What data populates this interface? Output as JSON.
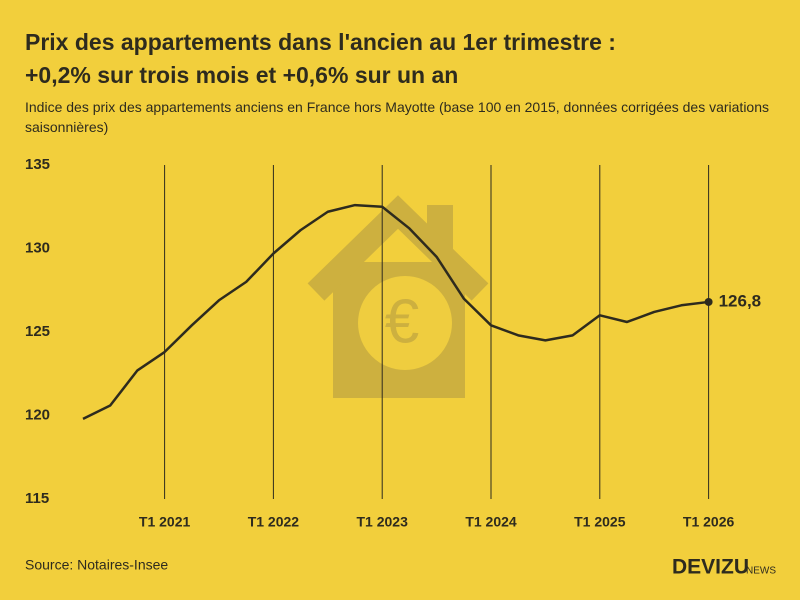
{
  "chart_data": {
    "type": "line",
    "title": "Prix des appartements dans l'ancien au 1er trimestre :",
    "title_line2": "+0,2% sur trois mois et +0,6% sur un an",
    "subtitle": "Indice des prix des appartements anciens en France hors Mayotte (base 100 en 2015, données corrigées des variations saisonnières)",
    "source": "Source: Notaires-Insee",
    "brand": "DEVIZU",
    "brand_suffix": "NEWS",
    "categories": [
      null,
      null,
      null,
      "T1 2021",
      null,
      null,
      null,
      "T1 2022",
      null,
      null,
      null,
      "T1 2023",
      null,
      null,
      null,
      "T1 2024",
      null,
      null,
      null,
      "T1 2025",
      null,
      null,
      null,
      "T1 2026"
    ],
    "series": [
      {
        "name": "Indice",
        "color": "#2e2b1e",
        "values": [
          119.8,
          120.6,
          122.7,
          123.8,
          125.4,
          126.9,
          128.0,
          129.7,
          131.1,
          132.2,
          132.6,
          132.5,
          131.2,
          129.5,
          127.0,
          125.4,
          124.8,
          124.5,
          124.8,
          126.0,
          125.6,
          126.2,
          126.6,
          126.8
        ],
        "value_labels": [
          null,
          null,
          null,
          null,
          null,
          null,
          null,
          null,
          null,
          null,
          null,
          null,
          null,
          null,
          null,
          null,
          null,
          null,
          null,
          null,
          null,
          null,
          null,
          "126,8"
        ]
      }
    ],
    "ylim": [
      115,
      135
    ],
    "yticks": [
      115,
      120,
      125,
      130,
      135
    ],
    "grid": false,
    "xgrid": true
  }
}
